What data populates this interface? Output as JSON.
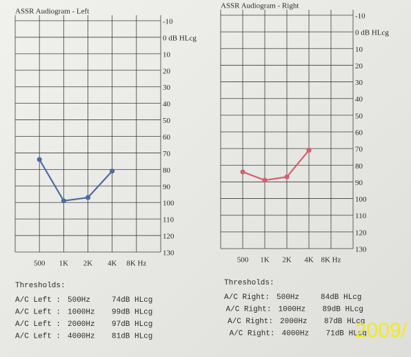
{
  "chart_data": [
    {
      "type": "line",
      "title": "ASSR Audiogram - Left",
      "categories": [
        "500",
        "1K",
        "2K",
        "4K",
        "8K Hz"
      ],
      "values": [
        74,
        99,
        97,
        81,
        null
      ],
      "color": "#4d6b9c",
      "ylim": [
        130,
        -10
      ],
      "yticks": [
        -10,
        {
          "value": 0,
          "label": "0 dB HLcg"
        },
        10,
        20,
        30,
        40,
        50,
        60,
        70,
        80,
        90,
        100,
        110,
        120,
        130
      ],
      "grid": true
    },
    {
      "type": "line",
      "title": "ASSR Audiogram - Right",
      "categories": [
        "500",
        "1K",
        "2K",
        "4K",
        "8K Hz"
      ],
      "values": [
        84,
        89,
        87,
        71,
        null
      ],
      "color": "#d65f6b",
      "ylim": [
        130,
        -10
      ],
      "yticks": [
        -10,
        {
          "value": 0,
          "label": "0 dB HLcg"
        },
        10,
        20,
        30,
        40,
        50,
        60,
        70,
        80,
        90,
        100,
        110,
        120,
        130
      ],
      "grid": true
    }
  ],
  "thresholds": [
    {
      "title": "Thresholds:",
      "rows": [
        [
          "A/C Left :",
          "500Hz",
          "74dB HLcg"
        ],
        [
          "A/C Left :",
          "1000Hz",
          "99dB HLcg"
        ],
        [
          "A/C Left :",
          "2000Hz",
          "97dB HLcg"
        ],
        [
          "A/C Left :",
          "4000Hz",
          "81dB HLcg"
        ]
      ]
    },
    {
      "title": "Thresholds:",
      "rows": [
        [
          "A/C Right:",
          "500Hz",
          "84dB HLcg"
        ],
        [
          "A/C Right:",
          "1000Hz",
          "89dB HLcg"
        ],
        [
          "A/C Right:",
          "2000Hz",
          "87dB HLcg"
        ],
        [
          "A/C Right:",
          "4000Hz",
          "71dB HLcg"
        ]
      ]
    }
  ],
  "stamp": "2009/"
}
